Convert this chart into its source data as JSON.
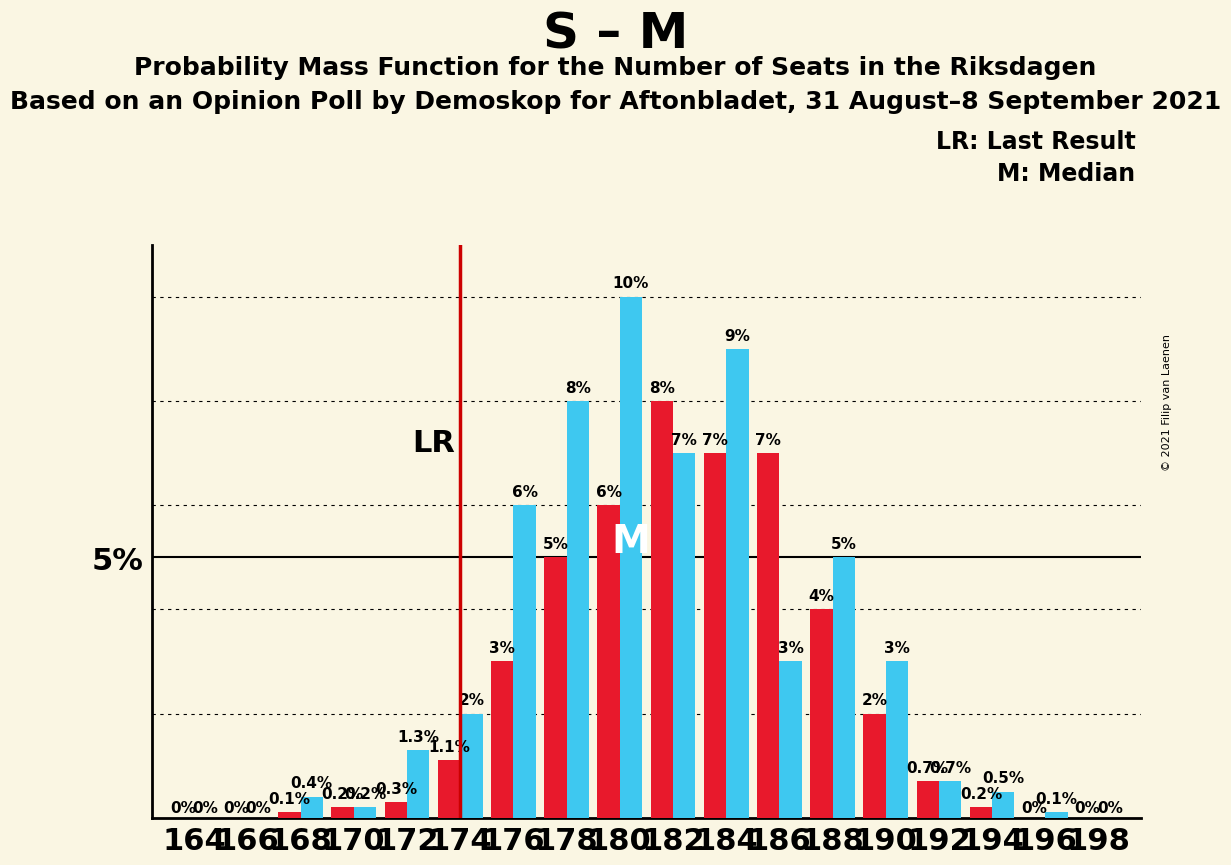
{
  "title": "S – M",
  "subtitle1": "Probability Mass Function for the Number of Seats in the Riksdagen",
  "subtitle2": "Based on an Opinion Poll by Demoskop for Aftonbladet, 31 August–8 September 2021",
  "copyright": "© 2021 Filip van Laenen",
  "legend1": "LR: Last Result",
  "legend2": "M: Median",
  "ylabel": "5%",
  "background_color": "#faf6e3",
  "bar_color_blue": "#3ec8f0",
  "bar_color_red": "#e8192c",
  "lr_line_color": "#cc0000",
  "five_pct_line_color": "#000000",
  "seats": [
    164,
    166,
    168,
    170,
    172,
    174,
    176,
    178,
    180,
    182,
    184,
    186,
    188,
    190,
    192,
    194,
    196,
    198
  ],
  "blue_values": [
    0.0,
    0.0,
    0.4,
    0.2,
    1.3,
    2.0,
    6.0,
    8.0,
    10.0,
    7.0,
    9.0,
    3.0,
    5.0,
    3.0,
    0.7,
    0.5,
    0.1,
    0.0
  ],
  "red_values": [
    0.0,
    0.0,
    0.1,
    0.2,
    0.3,
    1.1,
    3.0,
    5.0,
    6.0,
    8.0,
    7.0,
    7.0,
    4.0,
    2.0,
    0.7,
    0.2,
    0.0,
    0.0
  ],
  "blue_labels": [
    "0%",
    "0%",
    "0.4%",
    "0.2%",
    "1.3%",
    "2%",
    "6%",
    "8%",
    "10%",
    "7%",
    "9%",
    "3%",
    "5%",
    "3%",
    "0.7%",
    "0.5%",
    "0.1%",
    "0%"
  ],
  "red_labels": [
    "0%",
    "0%",
    "0.1%",
    "0.2%",
    "0.3%",
    "1.1%",
    "3%",
    "5%",
    "6%",
    "8%",
    "7%",
    "7%",
    "4%",
    "2%",
    "0.7%",
    "0.2%",
    "0%",
    "0%"
  ],
  "lr_seat": 174,
  "median_seat": 180,
  "ylim": [
    0,
    11
  ],
  "ytick_pct": 5.0,
  "dotted_lines": [
    2,
    4,
    6,
    8,
    10
  ],
  "bar_width": 0.42,
  "title_fontsize": 36,
  "subtitle1_fontsize": 18,
  "subtitle2_fontsize": 18,
  "axis_label_fontsize": 22,
  "bar_label_fontsize": 11,
  "lr_label_fontsize": 22,
  "median_label_fontsize": 28,
  "xtick_fontsize": 22,
  "copyright_fontsize": 8,
  "legend_fontsize": 17
}
